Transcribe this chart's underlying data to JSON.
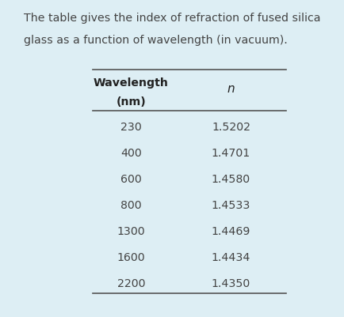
{
  "description_line1": "The table gives the index of refraction of fused silica",
  "description_line2": "glass as a function of wavelength (in vacuum).",
  "col1_header_line1": "Wavelength",
  "col1_header_line2": "(nm)",
  "col2_header": "n",
  "wavelengths": [
    "230",
    "400",
    "600",
    "800",
    "1300",
    "1600",
    "2200"
  ],
  "n_values": [
    "1.5202",
    "1.4701",
    "1.4580",
    "1.4533",
    "1.4469",
    "1.4434",
    "1.4350"
  ],
  "bg_color": "#ddeef4",
  "text_color": "#444444",
  "header_color": "#222222",
  "line_color": "#555555",
  "fig_width": 4.35,
  "fig_height": 4.01,
  "dpi": 100
}
